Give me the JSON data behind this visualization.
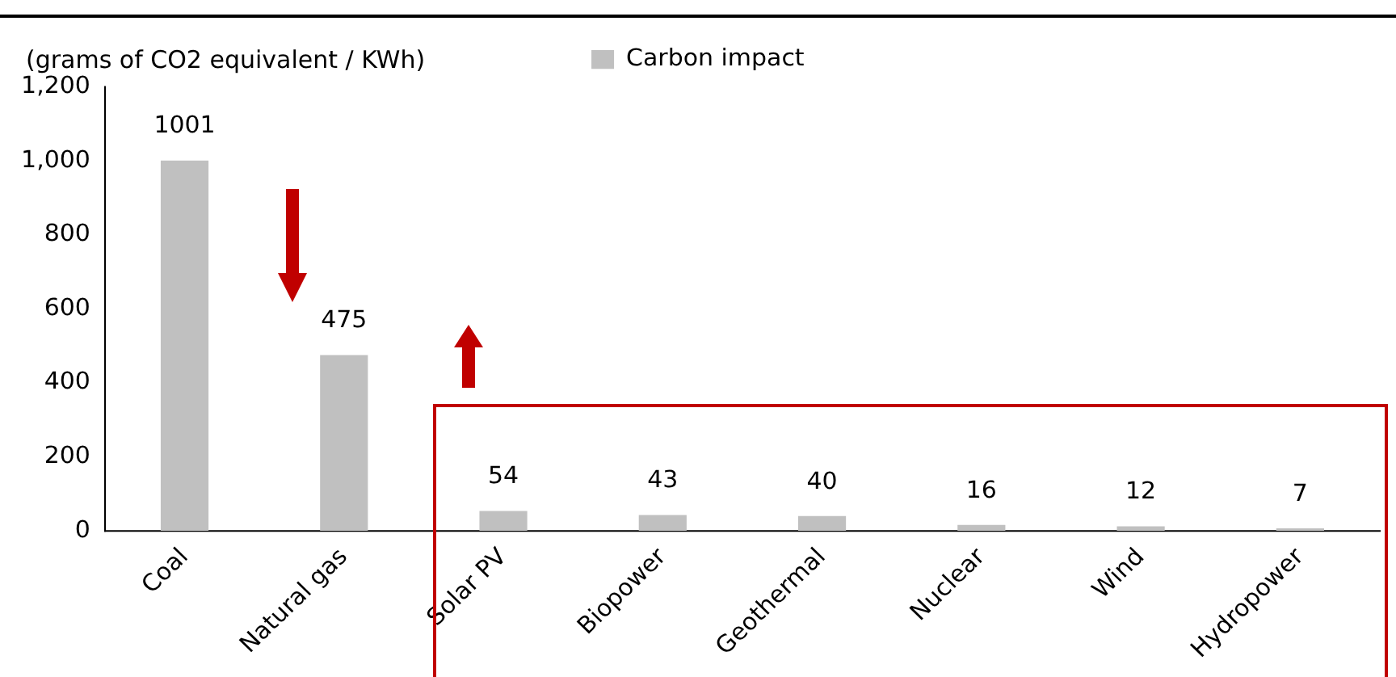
{
  "chart_data": {
    "type": "bar",
    "ylabel": "(grams of CO2 equivalent / KWh)",
    "categories": [
      "Coal",
      "Natural gas",
      "Solar PV",
      "Biopower",
      "Geothermal",
      "Nuclear",
      "Wind",
      "Hydropower"
    ],
    "series": [
      {
        "name": "Carbon impact",
        "color": "#c0c0c0",
        "values": [
          1001,
          475,
          54,
          43,
          40,
          16,
          12,
          7
        ]
      }
    ],
    "ylim": [
      0,
      1200
    ],
    "yticks": [
      {
        "value": 0,
        "label": "0"
      },
      {
        "value": 200,
        "label": "200"
      },
      {
        "value": 400,
        "label": "400"
      },
      {
        "value": 600,
        "label": "600"
      },
      {
        "value": 800,
        "label": "800"
      },
      {
        "value": 1000,
        "label": "1,000"
      },
      {
        "value": 1200,
        "label": "1,200"
      }
    ],
    "data_labels": true,
    "grid": false,
    "legend": "top"
  }
}
